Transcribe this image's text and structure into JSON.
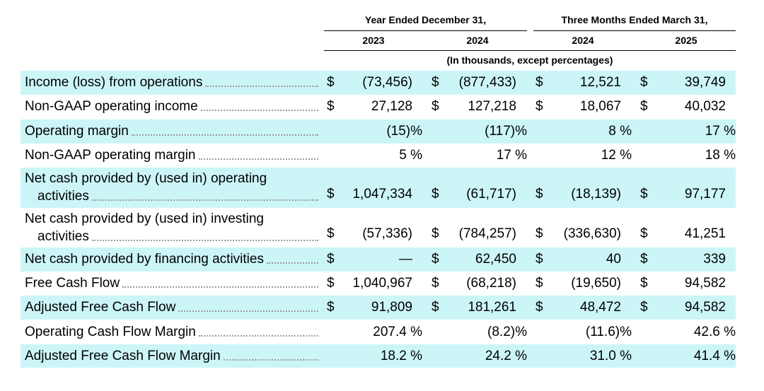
{
  "headers": {
    "group1": "Year Ended December 31,",
    "group2": "Three Months Ended March 31,",
    "years": [
      "2023",
      "2024",
      "2024",
      "2025"
    ],
    "units_note": "(In thousands, except percentages)"
  },
  "rows": [
    {
      "label": "Income (loss) from operations",
      "shaded": true,
      "cells": [
        {
          "cur": "$",
          "val": "(73,456)"
        },
        {
          "cur": "$",
          "val": "(877,433)"
        },
        {
          "cur": "$",
          "val": "12,521"
        },
        {
          "cur": "$",
          "val": "39,749"
        }
      ]
    },
    {
      "label": "Non-GAAP operating income",
      "shaded": false,
      "cells": [
        {
          "cur": "$",
          "val": "27,128"
        },
        {
          "cur": "$",
          "val": "127,218"
        },
        {
          "cur": "$",
          "val": "18,067"
        },
        {
          "cur": "$",
          "val": "40,032"
        }
      ]
    },
    {
      "label": "Operating margin",
      "shaded": true,
      "cells": [
        {
          "cur": "",
          "val": "(15)%"
        },
        {
          "cur": "",
          "val": "(117)%"
        },
        {
          "cur": "",
          "val": "8 %"
        },
        {
          "cur": "",
          "val": "17 %"
        }
      ]
    },
    {
      "label": "Non-GAAP operating margin",
      "shaded": false,
      "cells": [
        {
          "cur": "",
          "val": "5 %"
        },
        {
          "cur": "",
          "val": "17 %"
        },
        {
          "cur": "",
          "val": "12 %"
        },
        {
          "cur": "",
          "val": "18 %"
        }
      ]
    },
    {
      "label": "Net cash provided by (used in) operating",
      "label2": "activities",
      "shaded": true,
      "cells": [
        {
          "cur": "$",
          "val": "1,047,334"
        },
        {
          "cur": "$",
          "val": "(61,717)"
        },
        {
          "cur": "$",
          "val": "(18,139)"
        },
        {
          "cur": "$",
          "val": "97,177"
        }
      ]
    },
    {
      "label": "Net cash provided by (used in) investing",
      "label2": "activities",
      "shaded": false,
      "cells": [
        {
          "cur": "$",
          "val": "(57,336)"
        },
        {
          "cur": "$",
          "val": "(784,257)"
        },
        {
          "cur": "$",
          "val": "(336,630)"
        },
        {
          "cur": "$",
          "val": "41,251"
        }
      ]
    },
    {
      "label": "Net cash provided by financing activities",
      "shaded": true,
      "cells": [
        {
          "cur": "$",
          "val": "—"
        },
        {
          "cur": "$",
          "val": "62,450"
        },
        {
          "cur": "$",
          "val": "40"
        },
        {
          "cur": "$",
          "val": "339"
        }
      ]
    },
    {
      "label": "Free Cash Flow",
      "shaded": false,
      "cells": [
        {
          "cur": "$",
          "val": "1,040,967"
        },
        {
          "cur": "$",
          "val": "(68,218)"
        },
        {
          "cur": "$",
          "val": "(19,650)"
        },
        {
          "cur": "$",
          "val": "94,582"
        }
      ]
    },
    {
      "label": "Adjusted Free Cash Flow",
      "shaded": true,
      "cells": [
        {
          "cur": "$",
          "val": "91,809"
        },
        {
          "cur": "$",
          "val": "181,261"
        },
        {
          "cur": "$",
          "val": "48,472"
        },
        {
          "cur": "$",
          "val": "94,582"
        }
      ]
    },
    {
      "label": "Operating Cash Flow Margin",
      "shaded": false,
      "cells": [
        {
          "cur": "",
          "val": "207.4 %"
        },
        {
          "cur": "",
          "val": "(8.2)%"
        },
        {
          "cur": "",
          "val": "(11.6)%"
        },
        {
          "cur": "",
          "val": "42.6 %"
        }
      ]
    },
    {
      "label": "Adjusted Free Cash Flow Margin",
      "shaded": true,
      "cells": [
        {
          "cur": "",
          "val": "18.2 %"
        },
        {
          "cur": "",
          "val": "24.2 %"
        },
        {
          "cur": "",
          "val": "31.0 %"
        },
        {
          "cur": "",
          "val": "41.4 %"
        }
      ]
    }
  ]
}
